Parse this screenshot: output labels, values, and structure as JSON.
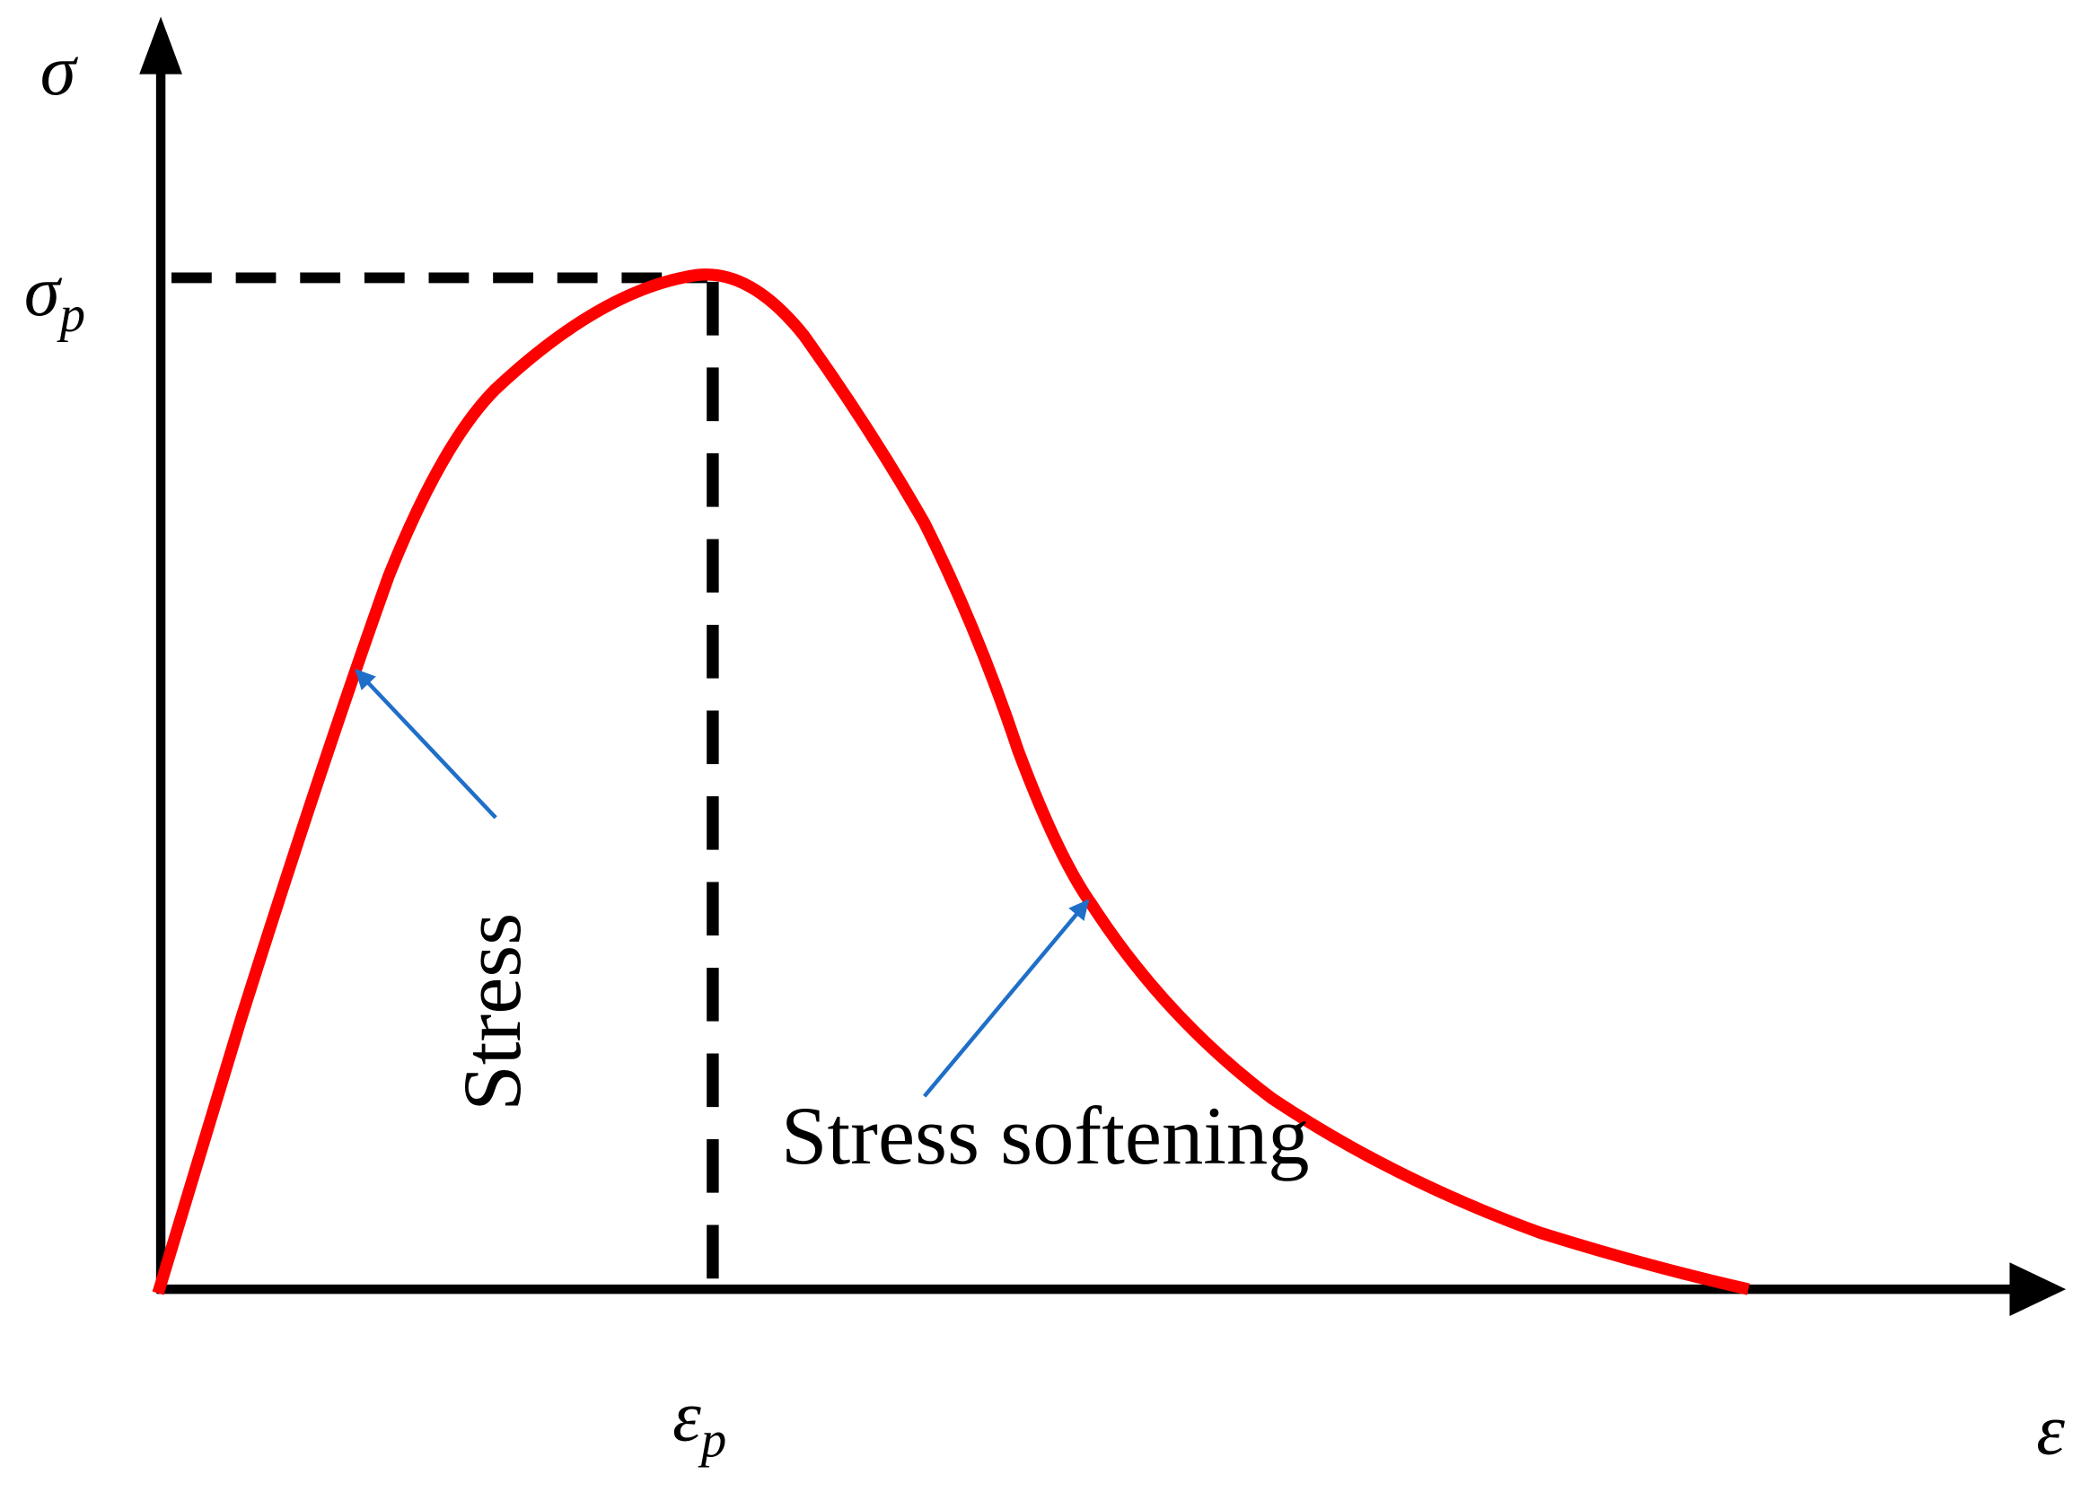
{
  "axes": {
    "y_label": "σ",
    "x_label": "ε"
  },
  "peak": {
    "stress": {
      "base": "σ",
      "sub": "p"
    },
    "strain": {
      "base": "ε",
      "sub": "p"
    }
  },
  "annotations": [
    "Stress",
    "Stress softening"
  ]
}
